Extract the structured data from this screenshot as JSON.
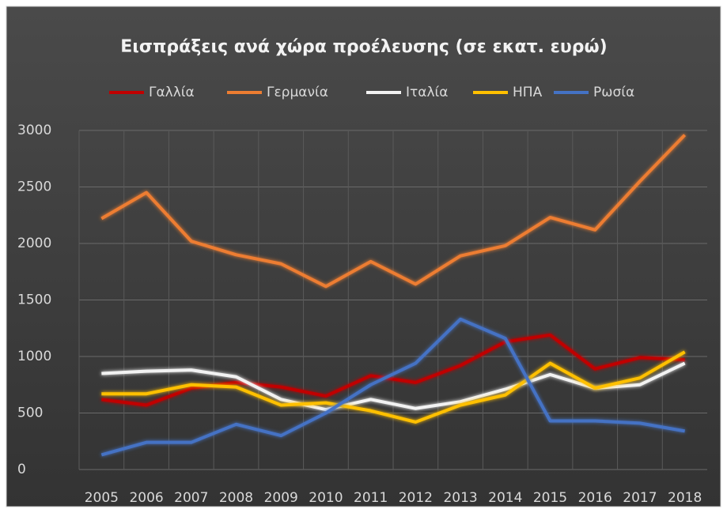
{
  "chart_data": {
    "type": "line",
    "title": "Εισπράξεις ανά χώρα προέλευσης (σε εκατ. ευρώ)",
    "categories": [
      "2005",
      "2006",
      "2007",
      "2008",
      "2009",
      "2010",
      "2011",
      "2012",
      "2013",
      "2014",
      "2015",
      "2016",
      "2017",
      "2018"
    ],
    "series": [
      {
        "name": "Γαλλία",
        "color": "#c00000",
        "values": [
          620,
          570,
          720,
          770,
          730,
          650,
          830,
          770,
          920,
          1130,
          1190,
          890,
          990,
          970
        ]
      },
      {
        "name": "Γερμανία",
        "color": "#ed7d31",
        "values": [
          2220,
          2450,
          2020,
          1900,
          1820,
          1620,
          1840,
          1640,
          1890,
          1980,
          2230,
          2120,
          2550,
          2960
        ]
      },
      {
        "name": "Ιταλία",
        "color": "#f2f2f2",
        "values": [
          850,
          870,
          880,
          820,
          620,
          530,
          620,
          540,
          600,
          710,
          840,
          720,
          750,
          940
        ]
      },
      {
        "name": "ΗΠΑ",
        "color": "#ffc000",
        "values": [
          670,
          670,
          750,
          730,
          570,
          590,
          520,
          420,
          570,
          660,
          940,
          720,
          810,
          1040
        ]
      },
      {
        "name": "Ρωσία",
        "color": "#4472c4",
        "values": [
          130,
          240,
          240,
          400,
          300,
          500,
          750,
          940,
          1330,
          1160,
          430,
          430,
          410,
          340
        ]
      }
    ],
    "ylim": [
      0,
      3000
    ],
    "yticks": [
      0,
      500,
      1000,
      1500,
      2000,
      2500,
      3000
    ],
    "grid": true,
    "legend": "top"
  }
}
